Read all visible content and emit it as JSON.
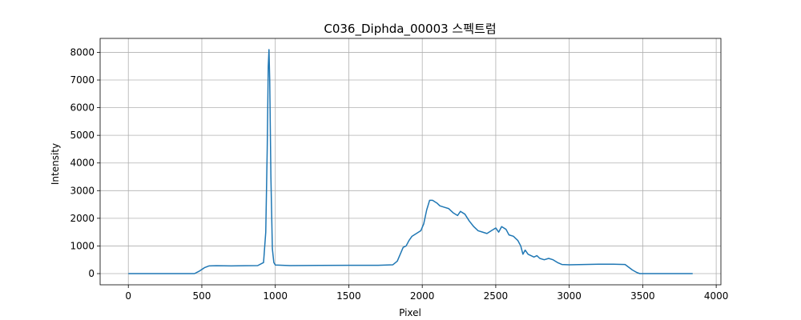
{
  "chart_data": {
    "type": "line",
    "title": "C036_Diphda_00003 스펙트럼",
    "xlabel": "Pixel",
    "ylabel": "Intensity",
    "x": [
      0,
      450,
      480,
      520,
      550,
      600,
      700,
      800,
      880,
      920,
      935,
      945,
      952,
      957,
      962,
      970,
      980,
      990,
      1000,
      1100,
      1300,
      1500,
      1700,
      1800,
      1830,
      1850,
      1870,
      1890,
      1910,
      1930,
      1960,
      1990,
      2010,
      2030,
      2050,
      2070,
      2100,
      2120,
      2150,
      2180,
      2210,
      2240,
      2260,
      2290,
      2320,
      2350,
      2380,
      2410,
      2440,
      2470,
      2500,
      2520,
      2540,
      2570,
      2590,
      2620,
      2650,
      2670,
      2685,
      2700,
      2720,
      2740,
      2760,
      2780,
      2800,
      2830,
      2860,
      2890,
      2920,
      2950,
      3000,
      3100,
      3200,
      3300,
      3380,
      3400,
      3430,
      3460,
      3480,
      3840
    ],
    "values": [
      0,
      0,
      80,
      220,
      280,
      285,
      280,
      285,
      290,
      400,
      1500,
      4500,
      7500,
      8100,
      7000,
      3500,
      900,
      400,
      310,
      290,
      295,
      300,
      300,
      320,
      450,
      700,
      950,
      1000,
      1200,
      1350,
      1450,
      1550,
      1800,
      2300,
      2650,
      2650,
      2550,
      2450,
      2400,
      2350,
      2200,
      2100,
      2250,
      2150,
      1900,
      1700,
      1550,
      1500,
      1450,
      1550,
      1650,
      1500,
      1700,
      1600,
      1400,
      1350,
      1200,
      1000,
      700,
      850,
      700,
      650,
      600,
      650,
      550,
      500,
      550,
      500,
      400,
      330,
      320,
      330,
      340,
      340,
      330,
      250,
      130,
      40,
      0,
      0
    ],
    "color": "#1f77b4",
    "xlim": [
      -192,
      4032
    ],
    "xticks": [
      0,
      500,
      1000,
      1500,
      2000,
      2500,
      3000,
      3500,
      4000
    ],
    "ylim": [
      -405,
      8505
    ],
    "yticks": [
      0,
      1000,
      2000,
      3000,
      4000,
      5000,
      6000,
      7000,
      8000
    ],
    "grid": true
  }
}
